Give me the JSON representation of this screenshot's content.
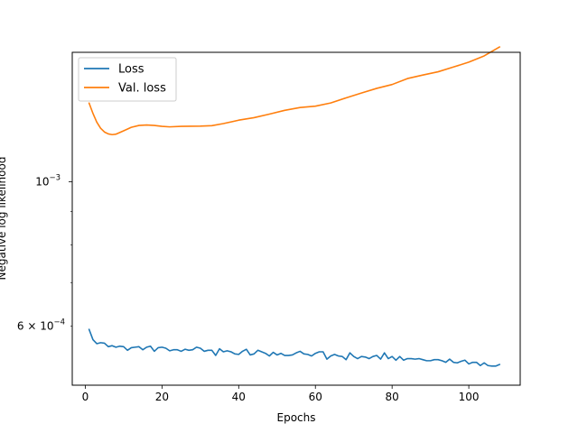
{
  "chart_data": {
    "type": "line",
    "xlabel": "Epochs",
    "ylabel": "Negative log likelihood",
    "yscale": "log",
    "xlim": [
      -3.4,
      113.4
    ],
    "ylim": [
      0.000487,
      0.00158
    ],
    "grid": false,
    "legend_position": "top-left",
    "x_ticks": [
      {
        "value": 0,
        "label": "0"
      },
      {
        "value": 20,
        "label": "20"
      },
      {
        "value": 40,
        "label": "40"
      },
      {
        "value": 60,
        "label": "60"
      },
      {
        "value": 80,
        "label": "80"
      },
      {
        "value": 100,
        "label": "100"
      }
    ],
    "y_major_ticks": [
      {
        "value": 0.001,
        "base": "10",
        "exponent": "−3"
      }
    ],
    "y_minor_ticks": [
      0.0006,
      0.0007,
      0.0008,
      0.0009
    ],
    "y_minor_labels": [
      {
        "value": 0.0006,
        "mantissa": "6 × 10",
        "exponent": "−4"
      }
    ],
    "series": [
      {
        "name": "Loss",
        "color": "#1f77b4",
        "x": [
          1,
          2,
          3,
          4,
          5,
          6,
          7,
          8,
          9,
          10,
          11,
          12,
          13,
          14,
          15,
          16,
          17,
          18,
          19,
          20,
          21,
          22,
          23,
          24,
          25,
          26,
          27,
          28,
          29,
          30,
          31,
          32,
          33,
          34,
          35,
          36,
          37,
          38,
          39,
          40,
          41,
          42,
          43,
          44,
          45,
          46,
          47,
          48,
          49,
          50,
          51,
          52,
          53,
          54,
          55,
          56,
          57,
          58,
          59,
          60,
          61,
          62,
          63,
          64,
          65,
          66,
          67,
          68,
          69,
          70,
          71,
          72,
          73,
          74,
          75,
          76,
          77,
          78,
          79,
          80,
          81,
          82,
          83,
          84,
          85,
          86,
          87,
          88,
          89,
          90,
          91,
          92,
          93,
          94,
          95,
          96,
          97,
          98,
          99,
          100,
          101,
          102,
          103,
          104,
          105,
          106,
          107,
          108
        ],
        "y": [
          0.000593,
          0.000572,
          0.000564,
          0.000566,
          0.000565,
          0.000558,
          0.00056,
          0.000557,
          0.000559,
          0.000558,
          0.000551,
          0.000556,
          0.000557,
          0.000558,
          0.000552,
          0.000557,
          0.000559,
          0.000549,
          0.000556,
          0.000557,
          0.000555,
          0.00055,
          0.000552,
          0.000552,
          0.000549,
          0.000553,
          0.000551,
          0.000552,
          0.000557,
          0.000555,
          0.000549,
          0.000551,
          0.000551,
          0.000541,
          0.000554,
          0.000548,
          0.00055,
          0.000548,
          0.000544,
          0.000543,
          0.000549,
          0.000553,
          0.000542,
          0.000544,
          0.000551,
          0.000548,
          0.000545,
          0.00054,
          0.000547,
          0.000542,
          0.000545,
          0.000541,
          0.000541,
          0.000542,
          0.000546,
          0.000549,
          0.000544,
          0.000543,
          0.00054,
          0.000545,
          0.000548,
          0.000548,
          0.000534,
          0.00054,
          0.000543,
          0.00054,
          0.000539,
          0.000533,
          0.000546,
          0.000539,
          0.000535,
          0.000539,
          0.000538,
          0.000535,
          0.000539,
          0.000541,
          0.000534,
          0.000546,
          0.000535,
          0.000539,
          0.000532,
          0.000539,
          0.000532,
          0.000535,
          0.000535,
          0.000534,
          0.000535,
          0.000533,
          0.000531,
          0.000531,
          0.000533,
          0.000533,
          0.000531,
          0.000528,
          0.000534,
          0.000528,
          0.000527,
          0.00053,
          0.000532,
          0.000525,
          0.000528,
          0.000528,
          0.000522,
          0.000527,
          0.000522,
          0.000521,
          0.000521,
          0.000524
        ]
      },
      {
        "name": "Val. loss",
        "color": "#ff7f0e",
        "x": [
          1,
          2,
          3,
          4,
          5,
          6,
          7,
          8,
          10,
          12,
          14,
          16,
          18,
          20,
          22,
          25,
          30,
          33,
          36,
          40,
          44,
          48,
          52,
          56,
          60,
          64,
          68,
          72,
          76,
          80,
          84,
          88,
          92,
          96,
          100,
          104,
          108
        ],
        "y": [
          0.00132,
          0.001273,
          0.001234,
          0.001208,
          0.001192,
          0.001184,
          0.001181,
          0.001183,
          0.001197,
          0.001212,
          0.00122,
          0.001222,
          0.00122,
          0.001216,
          0.001214,
          0.001216,
          0.001217,
          0.001219,
          0.001228,
          0.001243,
          0.001254,
          0.00127,
          0.001287,
          0.0013,
          0.001306,
          0.001321,
          0.001345,
          0.001368,
          0.001391,
          0.00141,
          0.00144,
          0.001458,
          0.001475,
          0.0015,
          0.001526,
          0.00156,
          0.00161
        ]
      }
    ]
  }
}
